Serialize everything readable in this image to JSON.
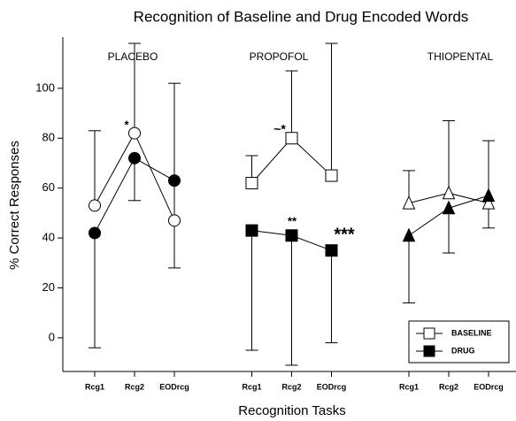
{
  "chart_data": {
    "type": "line",
    "title": "Recognition of Baseline and Drug Encoded Words",
    "x_label": "Recognition Tasks",
    "y_label": "% Correct Responses",
    "groups": [
      "PLACEBO",
      "PROPOFOL",
      "THIOPENTAL"
    ],
    "group_markers": [
      "circle",
      "square",
      "triangle"
    ],
    "categories": [
      "Rcg1",
      "Rcg2",
      "EODrcg",
      "Rcg1",
      "Rcg2",
      "EODrcg",
      "Rcg1",
      "Rcg2",
      "EODrcg"
    ],
    "series": [
      {
        "name": "BASELINE",
        "color": "#ffffff",
        "error_side": "up",
        "values": [
          53,
          82,
          47,
          62,
          80,
          65,
          54,
          58,
          54
        ],
        "errors": [
          30,
          36,
          55,
          11,
          27,
          53,
          13,
          29,
          25
        ]
      },
      {
        "name": "DRUG",
        "color": "#000000",
        "error_side": "down",
        "values": [
          42,
          72,
          63,
          43,
          41,
          35,
          41,
          52,
          57
        ],
        "errors": [
          46,
          17,
          35,
          48,
          52,
          37,
          27,
          18,
          13
        ]
      }
    ],
    "annotations": [
      "*",
      "*",
      "~*",
      "**",
      "***"
    ],
    "ylim": [
      -13.5,
      120.5
    ],
    "yticks": [
      0,
      20,
      40,
      60,
      80,
      100
    ],
    "legend": "lower right"
  }
}
